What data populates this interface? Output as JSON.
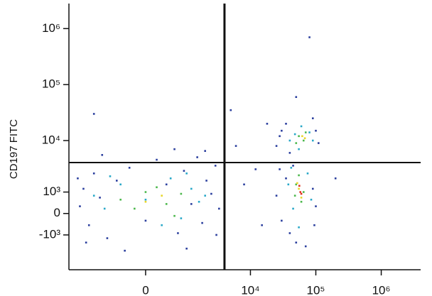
{
  "chart_data": {
    "type": "scatter",
    "y_label": "CD197 FITC",
    "scale": "biexponential",
    "xlim": [
      -3700,
      4000000
    ],
    "ylim": [
      -5000,
      2800000
    ],
    "xticks": [
      0,
      {
        "value": 10000,
        "label": "10⁴"
      },
      {
        "value": 100000,
        "label": "10⁵"
      },
      {
        "value": 1000000,
        "label": "10⁶"
      }
    ],
    "yticks": [
      {
        "value": 1000000,
        "label": "10⁶"
      },
      {
        "value": 100000,
        "label": "10⁵"
      },
      {
        "value": 10000,
        "label": "10⁴"
      },
      {
        "value": 1000,
        "label": "10³"
      },
      0,
      {
        "value": -1000,
        "label": "-10³"
      }
    ],
    "gates": {
      "x": 4000,
      "y": 4000
    },
    "series": [
      {
        "color": "#2b3f9e",
        "x": [
          -2500,
          -2200,
          -1800,
          -1500,
          -1200,
          -900,
          -600,
          -300,
          0,
          200,
          400,
          700,
          900,
          1200,
          1500,
          1800,
          2100,
          2500,
          2900,
          3300,
          -2000,
          -1100,
          600,
          2000,
          -2700,
          1000,
          3000,
          -400,
          25000,
          30000,
          35000,
          40000,
          90000,
          110000,
          45000,
          100000,
          28000,
          25000,
          30000,
          35000,
          40000,
          90000,
          100000,
          28000,
          95000,
          50000,
          70000,
          8000,
          12000,
          15000,
          6000,
          50000,
          80000,
          5000,
          -1500,
          200000,
          18000
        ],
        "values": [
          300,
          1200,
          -500,
          2500,
          700,
          -1200,
          1800,
          3200,
          -300,
          4500,
          1500,
          -900,
          2800,
          400,
          5000,
          -400,
          1800,
          900,
          3500,
          200,
          -1500,
          5500,
          7000,
          6500,
          2000,
          -2000,
          -1000,
          -2200,
          8000,
          15000,
          20000,
          6000,
          25000,
          9000,
          3500,
          15000,
          12000,
          800,
          -300,
          2000,
          -900,
          1200,
          300,
          3000,
          -500,
          -1500,
          -1800,
          1500,
          3000,
          -500,
          8000,
          60000,
          700000,
          35000,
          30000,
          2000,
          20000
        ]
      },
      {
        "color": "#29a8c8",
        "x": [
          -1500,
          -1000,
          -500,
          0,
          500,
          800,
          1200,
          1600,
          -800,
          300,
          2000,
          1000,
          40000,
          60000,
          55000,
          80000,
          48000,
          90000,
          38000,
          45000,
          75000,
          85000,
          55000,
          42000
        ],
        "values": [
          800,
          200,
          1500,
          600,
          2000,
          -200,
          1200,
          500,
          2200,
          -500,
          800,
          2500,
          10000,
          18000,
          7000,
          14000,
          13000,
          10000,
          1500,
          200,
          2500,
          600,
          -600,
          3200
        ]
      },
      {
        "color": "#4cb84c",
        "x": [
          -500,
          0,
          400,
          800,
          200,
          -200,
          600,
          55000,
          65000,
          70000,
          50000,
          50000,
          60000,
          55000,
          65000,
          48000
        ],
        "values": [
          600,
          1000,
          400,
          900,
          1300,
          200,
          -100,
          12000,
          10000,
          14000,
          9000,
          1500,
          500,
          2300,
          1000,
          800
        ]
      },
      {
        "color": "#e8d62a",
        "x": [
          300,
          0,
          62000,
          68000,
          55000,
          60000,
          52000
        ],
        "values": [
          800,
          500,
          12000,
          11000,
          1200,
          700,
          1600
        ]
      },
      {
        "color": "#e0301e",
        "x": [
          58000,
          56000,
          60000
        ],
        "values": [
          1000,
          1400,
          900
        ]
      }
    ]
  }
}
